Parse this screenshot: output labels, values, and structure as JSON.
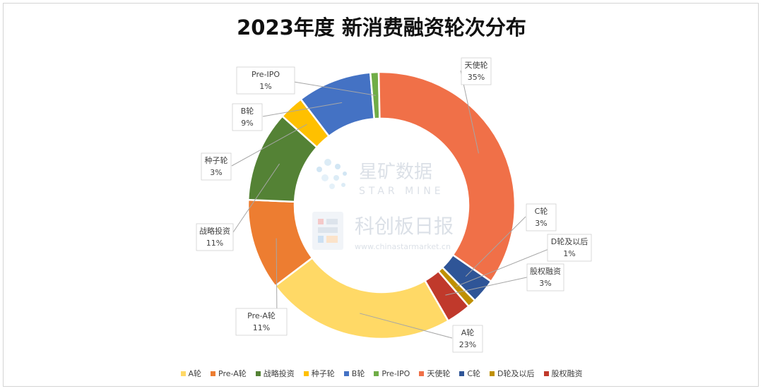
{
  "title": "2023年度 新消费融资轮次分布",
  "watermark": {
    "brand1": "星矿数据",
    "brand1_en": "STAR MINE",
    "brand2": "科创板日报",
    "url": "www.chinastarmarket.cn"
  },
  "chart_data": {
    "type": "pie",
    "variant": "donut",
    "title": "2023年度 新消费融资轮次分布",
    "categories": [
      "A轮",
      "Pre-A轮",
      "战略投资",
      "种子轮",
      "B轮",
      "Pre-IPO",
      "天使轮",
      "C轮",
      "D轮及以后",
      "股权融资"
    ],
    "values": [
      23,
      11,
      11,
      3,
      9,
      1,
      35,
      3,
      1,
      3
    ],
    "labels": [
      "23%",
      "11%",
      "11%",
      "3%",
      "9%",
      "1%",
      "35%",
      "3%",
      "1%",
      "3%"
    ],
    "colors": [
      "#FFD966",
      "#ED7D31",
      "#548235",
      "#FFC000",
      "#4472C4",
      "#70AD47",
      "#F07048",
      "#2F5597",
      "#BF9000",
      "#C0392B"
    ],
    "legend_position": "bottom"
  }
}
